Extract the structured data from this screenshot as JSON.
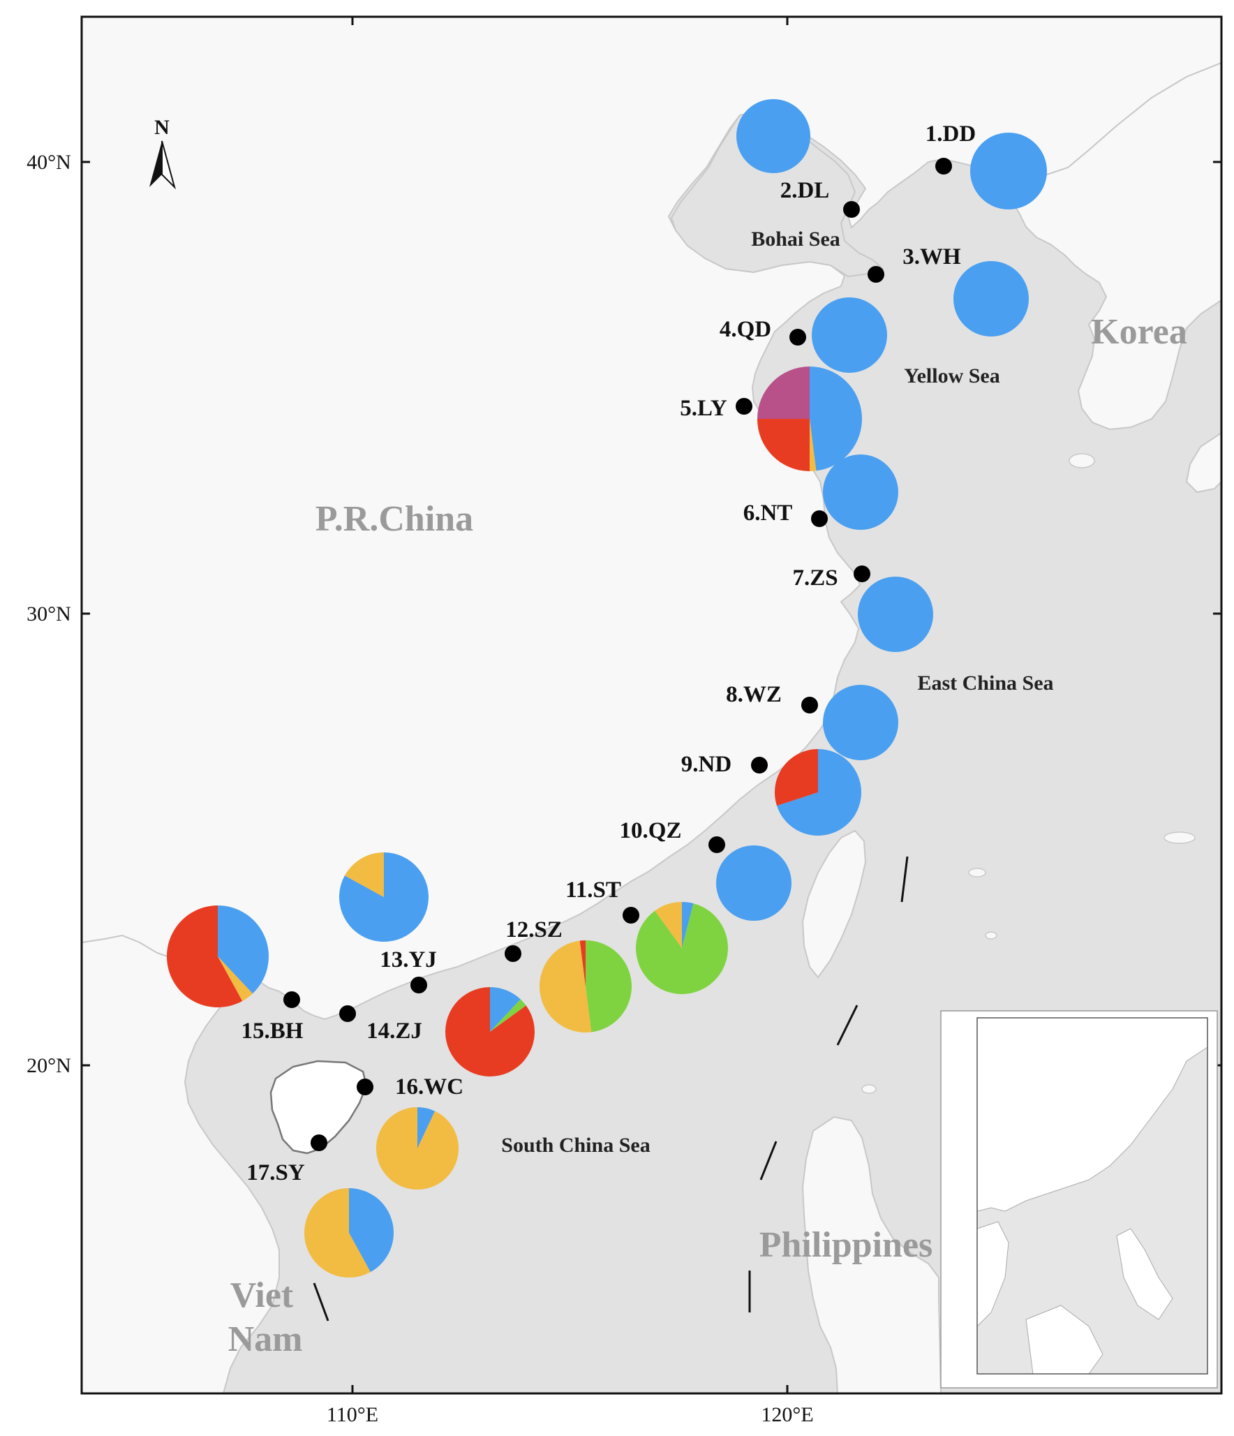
{
  "axes": {
    "lat_ticks": [
      {
        "value": 40,
        "label": "40°N"
      },
      {
        "value": 30,
        "label": "30°N"
      },
      {
        "value": 20,
        "label": "20°N"
      }
    ],
    "lon_ticks": [
      {
        "value": 110,
        "label": "110°E"
      },
      {
        "value": 120,
        "label": "120°E"
      }
    ]
  },
  "north_arrow": {
    "label": "N"
  },
  "region_labels": [
    {
      "key": "china",
      "text": "P.R.China",
      "kind": "country"
    },
    {
      "key": "korea",
      "text": "Korea",
      "kind": "country"
    },
    {
      "key": "philippines",
      "text": "Philippines",
      "kind": "country"
    },
    {
      "key": "vietnam-1",
      "text": "Viet",
      "kind": "country"
    },
    {
      "key": "vietnam-2",
      "text": "Nam",
      "kind": "country"
    },
    {
      "key": "bohai",
      "text": "Bohai Sea",
      "kind": "sea"
    },
    {
      "key": "yellow",
      "text": "Yellow Sea",
      "kind": "sea"
    },
    {
      "key": "east-china",
      "text": "East China Sea",
      "kind": "sea"
    },
    {
      "key": "south-china",
      "text": "South China Sea",
      "kind": "sea"
    }
  ],
  "colors": {
    "blue": "#4a9ff0",
    "red": "#e83c22",
    "yellow": "#f2bb42",
    "green": "#7fd340",
    "purple": "#b8508a",
    "sea": "#e2e2e2",
    "land": "#f8f8f8"
  },
  "sites": [
    {
      "label": "1.DD",
      "slices": [
        {
          "color": "blue",
          "value": 1
        }
      ]
    },
    {
      "label": "2.DL",
      "slices": [
        {
          "color": "blue",
          "value": 1
        }
      ]
    },
    {
      "label": "3.WH",
      "slices": [
        {
          "color": "blue",
          "value": 1
        }
      ]
    },
    {
      "label": "4.QD",
      "slices": [
        {
          "color": "blue",
          "value": 1
        }
      ]
    },
    {
      "label": "5.LY",
      "slices": [
        {
          "color": "blue",
          "value": 0.48
        },
        {
          "color": "yellow",
          "value": 0.02
        },
        {
          "color": "red",
          "value": 0.25
        },
        {
          "color": "purple",
          "value": 0.25
        }
      ]
    },
    {
      "label": "6.NT",
      "slices": [
        {
          "color": "blue",
          "value": 1
        }
      ]
    },
    {
      "label": "7.ZS",
      "slices": [
        {
          "color": "blue",
          "value": 1
        }
      ]
    },
    {
      "label": "8.WZ",
      "slices": [
        {
          "color": "blue",
          "value": 1
        }
      ]
    },
    {
      "label": "9.ND",
      "slices": [
        {
          "color": "blue",
          "value": 0.7
        },
        {
          "color": "red",
          "value": 0.3
        }
      ]
    },
    {
      "label": "10.QZ",
      "slices": [
        {
          "color": "blue",
          "value": 1
        }
      ]
    },
    {
      "label": "11.ST",
      "slices": [
        {
          "color": "blue",
          "value": 0.04
        },
        {
          "color": "green",
          "value": 0.86
        },
        {
          "color": "yellow",
          "value": 0.1
        }
      ]
    },
    {
      "label": "12.SZ",
      "slices": [
        {
          "color": "green",
          "value": 0.48
        },
        {
          "color": "yellow",
          "value": 0.5
        },
        {
          "color": "red",
          "value": 0.02
        }
      ]
    },
    {
      "label": "13.YJ",
      "slices": [
        {
          "color": "blue",
          "value": 0.83
        },
        {
          "color": "yellow",
          "value": 0.17
        }
      ]
    },
    {
      "label": "14.ZJ",
      "slices": [
        {
          "color": "blue",
          "value": 0.12
        },
        {
          "color": "green",
          "value": 0.03
        },
        {
          "color": "red",
          "value": 0.85
        }
      ]
    },
    {
      "label": "15.BH",
      "slices": [
        {
          "color": "blue",
          "value": 0.38
        },
        {
          "color": "yellow",
          "value": 0.04
        },
        {
          "color": "red",
          "value": 0.58
        }
      ]
    },
    {
      "label": "16.WC",
      "slices": [
        {
          "color": "blue",
          "value": 0.07
        },
        {
          "color": "yellow",
          "value": 0.93
        }
      ]
    },
    {
      "label": "17.SY",
      "slices": [
        {
          "color": "blue",
          "value": 0.42
        },
        {
          "color": "yellow",
          "value": 0.58
        }
      ]
    }
  ]
}
